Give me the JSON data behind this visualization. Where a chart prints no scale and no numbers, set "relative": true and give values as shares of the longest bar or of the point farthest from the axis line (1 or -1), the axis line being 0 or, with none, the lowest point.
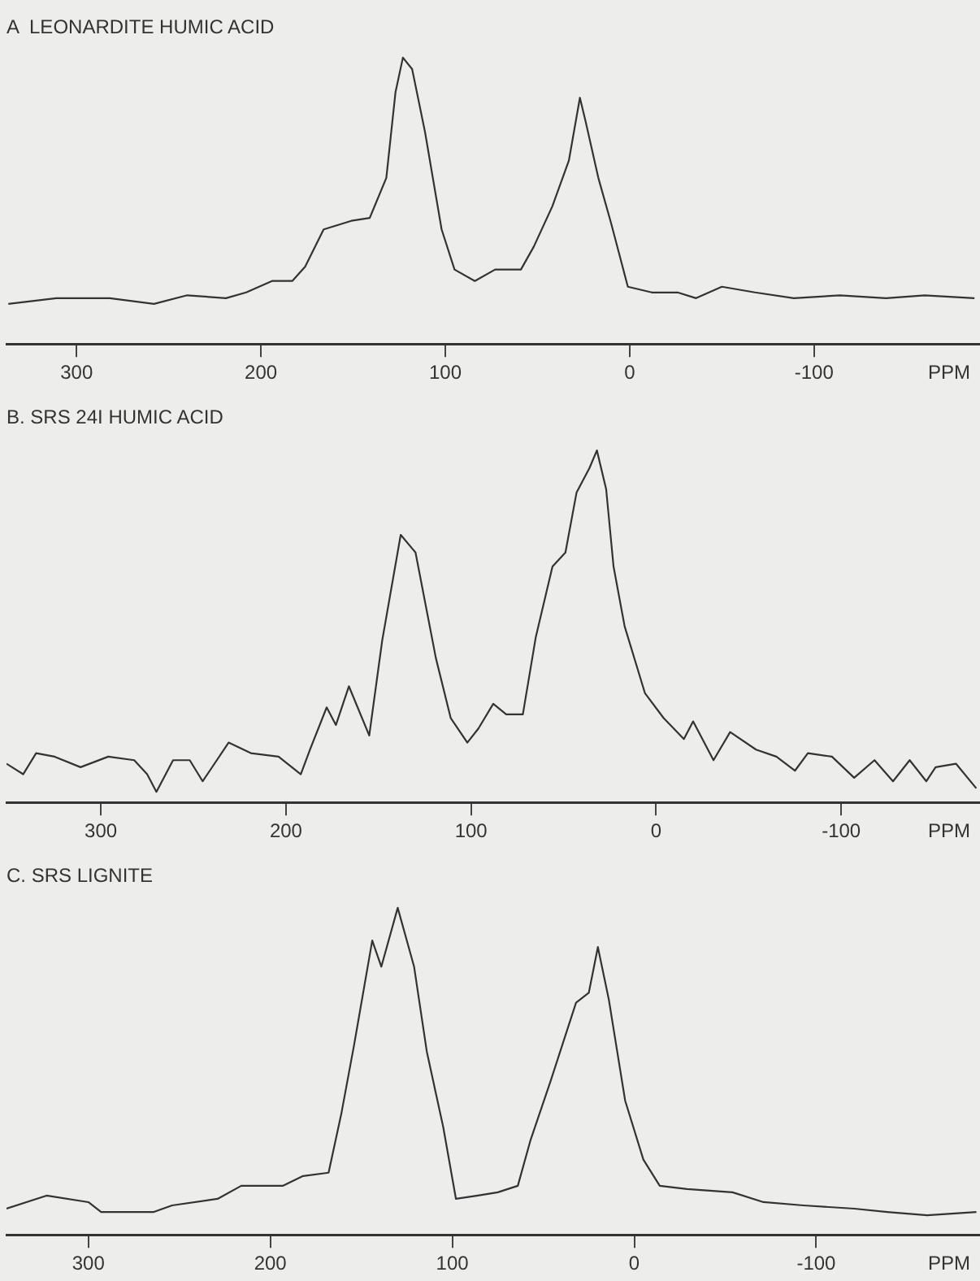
{
  "chart_data": [
    {
      "type": "line",
      "title": "A  LEONARDITE HUMIC ACID",
      "xlabel": "PPM",
      "relative": true,
      "grid": false,
      "legend": false,
      "marker": "none",
      "line_style": "solid",
      "xlim": [
        338,
        -190
      ],
      "xticks": [
        300,
        200,
        100,
        0,
        -100
      ],
      "series": [
        {
          "color": "#333333",
          "x": [
            337,
            311,
            282,
            258,
            240,
            219,
            208,
            194,
            183,
            176,
            166,
            151,
            141,
            132,
            127,
            123,
            118,
            111,
            102,
            95,
            84,
            73,
            59,
            52,
            42,
            33,
            27,
            24,
            17,
            10,
            1,
            -12,
            -26,
            -36,
            -50,
            -68,
            -89,
            -114,
            -139,
            -160,
            -187
          ],
          "values": [
            0.14,
            0.16,
            0.16,
            0.14,
            0.17,
            0.16,
            0.18,
            0.22,
            0.22,
            0.27,
            0.4,
            0.43,
            0.44,
            0.58,
            0.88,
            1,
            0.96,
            0.74,
            0.4,
            0.26,
            0.22,
            0.26,
            0.26,
            0.34,
            0.48,
            0.64,
            0.86,
            0.78,
            0.58,
            0.42,
            0.2,
            0.18,
            0.18,
            0.16,
            0.2,
            0.18,
            0.16,
            0.17,
            0.16,
            0.17,
            0.16
          ]
        }
      ]
    },
    {
      "type": "line",
      "title": "B. SRS 24I HUMIC ACID",
      "xlabel": "PPM",
      "relative": true,
      "grid": false,
      "legend": false,
      "marker": "none",
      "line_style": "solid",
      "xlim": [
        351,
        -175
      ],
      "xticks": [
        300,
        200,
        100,
        0,
        -100
      ],
      "series": [
        {
          "color": "#333333",
          "x": [
            351,
            342,
            335,
            325,
            311,
            296,
            282,
            275,
            270,
            261,
            252,
            245,
            231,
            219,
            204,
            192,
            187,
            178,
            173,
            166,
            155,
            148,
            138,
            130,
            119,
            111,
            102,
            96,
            88,
            81,
            72,
            65,
            56,
            49,
            43,
            36,
            32,
            27,
            23,
            17,
            6,
            -4,
            -15,
            -20,
            -31,
            -40,
            -54,
            -65,
            -75,
            -82,
            -95,
            -107,
            -118,
            -128,
            -137,
            -146,
            -151,
            -162,
            -173
          ],
          "values": [
            0.11,
            0.08,
            0.14,
            0.13,
            0.1,
            0.13,
            0.12,
            0.08,
            0.03,
            0.12,
            0.12,
            0.06,
            0.17,
            0.14,
            0.13,
            0.08,
            0.15,
            0.27,
            0.22,
            0.33,
            0.19,
            0.46,
            0.76,
            0.71,
            0.41,
            0.24,
            0.17,
            0.21,
            0.28,
            0.25,
            0.25,
            0.47,
            0.67,
            0.71,
            0.88,
            0.95,
            1,
            0.89,
            0.67,
            0.5,
            0.31,
            0.24,
            0.18,
            0.23,
            0.12,
            0.2,
            0.15,
            0.13,
            0.09,
            0.14,
            0.13,
            0.07,
            0.12,
            0.06,
            0.12,
            0.06,
            0.1,
            0.11,
            0.04
          ]
        }
      ]
    },
    {
      "type": "line",
      "title": "C. SRS LIGNITE",
      "xlabel": "PPM",
      "relative": true,
      "grid": false,
      "legend": false,
      "marker": "none",
      "line_style": "solid",
      "xlim": [
        345,
        -190
      ],
      "xticks": [
        300,
        200,
        100,
        0,
        -100
      ],
      "series": [
        {
          "color": "#333333",
          "x": [
            345,
            323,
            300,
            293,
            264,
            254,
            229,
            216,
            193,
            182,
            168,
            161,
            154,
            144,
            139,
            130,
            121,
            114,
            105,
            98,
            86,
            75,
            64,
            57,
            46,
            32,
            25,
            20,
            14,
            5,
            -5,
            -14,
            -29,
            -54,
            -71,
            -93,
            -121,
            -139,
            -161,
            -188
          ],
          "values": [
            0.08,
            0.12,
            0.1,
            0.07,
            0.07,
            0.09,
            0.11,
            0.15,
            0.15,
            0.18,
            0.19,
            0.37,
            0.58,
            0.9,
            0.82,
            1,
            0.82,
            0.56,
            0.33,
            0.11,
            0.12,
            0.13,
            0.15,
            0.29,
            0.47,
            0.71,
            0.74,
            0.88,
            0.72,
            0.41,
            0.23,
            0.15,
            0.14,
            0.13,
            0.1,
            0.09,
            0.08,
            0.07,
            0.06,
            0.07
          ]
        }
      ]
    }
  ]
}
